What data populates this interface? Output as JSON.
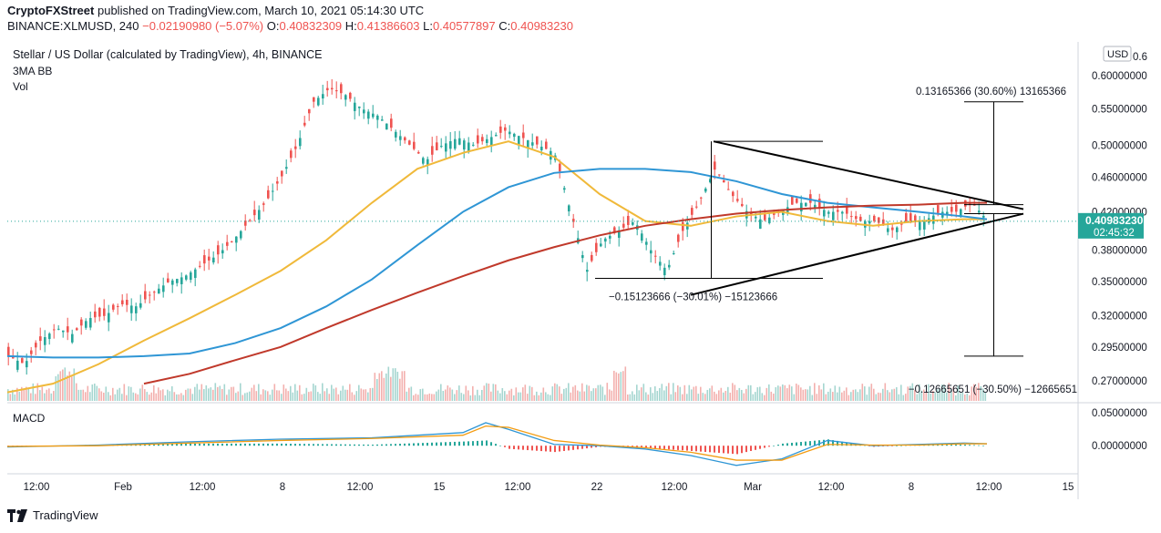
{
  "header": {
    "publisher": "CryptoFXStreet",
    "published_text": "published on TradingView.com, March 10, 2021 05:14:30 UTC",
    "symbol": "BINANCE:XLMUSD, 240",
    "change": "−0.02190980 (−5.07%)",
    "open_label": "O:",
    "open": "0.40832309",
    "high_label": "H:",
    "high": "0.41386603",
    "low_label": "L:",
    "low": "0.40577897",
    "close_label": "C:",
    "close": "0.40983230"
  },
  "legend": {
    "title": "Stellar / US Dollar (calculated by TradingView), 4h, BINANCE",
    "indicator": "3MA BB",
    "volume": "Vol",
    "macd": "MACD"
  },
  "price_axis": {
    "currency": "USD",
    "top_partial": "0.6",
    "last_price": "0.40983230",
    "countdown": "02:45:32",
    "last_price_color": "#26a69a"
  },
  "footer": {
    "brand": "TradingView"
  },
  "chart_data": [
    {
      "type": "line",
      "title": "Stellar / US Dollar (calculated by TradingView), 4h, BINANCE",
      "x_ticks": [
        "12:00",
        "Feb",
        "12:00",
        "8",
        "12:00",
        "15",
        "12:00",
        "22",
        "12:00",
        "Mar",
        "12:00",
        "8",
        "12:00",
        "15"
      ],
      "y_ticks": [
        0.6,
        0.55,
        0.5,
        0.46,
        0.42,
        0.38,
        0.35,
        0.32,
        0.295,
        0.27
      ],
      "y_tick_labels": [
        "0.60000000",
        "0.55000000",
        "0.50000000",
        "0.46000000",
        "0.42000000",
        "0.38000000",
        "0.35000000",
        "0.32000000",
        "0.29500000",
        "0.27000000"
      ],
      "ylim": [
        0.255,
        0.655
      ],
      "scale": "log",
      "last_price": 0.4098323,
      "series": [
        {
          "name": "",
          "color": "#f0b93a",
          "x": [
            0,
            20,
            40,
            60,
            80,
            100,
            120,
            140,
            160,
            180,
            200,
            220,
            240,
            260,
            280,
            300,
            320,
            340,
            360,
            380,
            400,
            420,
            430
          ],
          "values": [
            0.262,
            0.268,
            0.282,
            0.3,
            0.318,
            0.338,
            0.36,
            0.39,
            0.43,
            0.47,
            0.49,
            0.505,
            0.485,
            0.44,
            0.41,
            0.405,
            0.415,
            0.42,
            0.41,
            0.405,
            0.41,
            0.412,
            0.412
          ]
        },
        {
          "name": "",
          "color": "#2f96d5",
          "x": [
            0,
            20,
            40,
            60,
            80,
            100,
            120,
            140,
            160,
            180,
            200,
            220,
            240,
            260,
            280,
            300,
            320,
            340,
            360,
            380,
            400,
            420,
            430
          ],
          "values": [
            0.288,
            0.287,
            0.287,
            0.288,
            0.29,
            0.298,
            0.31,
            0.328,
            0.352,
            0.385,
            0.42,
            0.448,
            0.465,
            0.47,
            0.47,
            0.466,
            0.455,
            0.44,
            0.43,
            0.425,
            0.42,
            0.415,
            0.412
          ]
        },
        {
          "name": "",
          "color": "#c0392b",
          "x": [
            60,
            80,
            100,
            120,
            140,
            160,
            180,
            200,
            220,
            240,
            260,
            280,
            300,
            320,
            340,
            360,
            380,
            400,
            420,
            430
          ],
          "values": [
            0.268,
            0.275,
            0.285,
            0.295,
            0.31,
            0.325,
            0.34,
            0.355,
            0.37,
            0.383,
            0.395,
            0.405,
            0.412,
            0.418,
            0.422,
            0.425,
            0.427,
            0.428,
            0.43,
            0.43
          ]
        }
      ],
      "candles_close": [
        0.288,
        0.282,
        0.3,
        0.31,
        0.305,
        0.318,
        0.32,
        0.33,
        0.328,
        0.34,
        0.35,
        0.355,
        0.365,
        0.375,
        0.39,
        0.41,
        0.43,
        0.46,
        0.5,
        0.56,
        0.58,
        0.57,
        0.55,
        0.54,
        0.52,
        0.5,
        0.48,
        0.5,
        0.51,
        0.5,
        0.51,
        0.52,
        0.51,
        0.5,
        0.49,
        0.42,
        0.36,
        0.39,
        0.4,
        0.41,
        0.38,
        0.36,
        0.4,
        0.43,
        0.47,
        0.44,
        0.42,
        0.41,
        0.42,
        0.43,
        0.43,
        0.42,
        0.42,
        0.41,
        0.41,
        0.4,
        0.41,
        0.41,
        0.42,
        0.42,
        0.43,
        0.41
      ],
      "annotations": {
        "upper_measure": "0.13165366 (30.60%) 13165366",
        "mid_measure": "−0.15123666 (−30.01%) −15123666",
        "lower_measure": "−0.12665651 (−30.50%) −12665651",
        "measure_upper_top": 0.56,
        "measure_upper_bottom": 0.428,
        "measure_lower_bottom": 0.288,
        "mid_measure_top": 0.505,
        "mid_measure_bottom": 0.353,
        "triangle_upper": [
          {
            "x": 310,
            "y": 0.505
          },
          {
            "x": 446,
            "y": 0.423
          }
        ],
        "triangle_lower": [
          {
            "x": 300,
            "y": 0.338
          },
          {
            "x": 446,
            "y": 0.418
          }
        ]
      }
    },
    {
      "type": "bar",
      "title": "MACD",
      "y_ticks": [
        0.05,
        0.0
      ],
      "y_tick_labels": [
        "0.05000000",
        "0.00000000"
      ],
      "ylim": [
        -0.04,
        0.06
      ],
      "series": [
        {
          "name": "",
          "color": "#2f96d5",
          "x": [
            0,
            40,
            80,
            120,
            160,
            200,
            210,
            220,
            240,
            260,
            280,
            300,
            320,
            340,
            360,
            380,
            400,
            420,
            430
          ],
          "values": [
            -0.002,
            0.001,
            0.006,
            0.01,
            0.012,
            0.02,
            0.035,
            0.025,
            0.002,
            0.0,
            -0.005,
            -0.015,
            -0.03,
            -0.02,
            0.008,
            0.0,
            0.002,
            0.004,
            0.003
          ]
        },
        {
          "name": "",
          "color": "#f39c12",
          "x": [
            0,
            40,
            80,
            120,
            160,
            200,
            210,
            220,
            240,
            260,
            280,
            300,
            320,
            340,
            360,
            380,
            400,
            420,
            430
          ],
          "values": [
            -0.001,
            0.0,
            0.004,
            0.008,
            0.011,
            0.016,
            0.03,
            0.028,
            0.008,
            0.001,
            -0.003,
            -0.01,
            -0.022,
            -0.022,
            0.002,
            0.001,
            0.001,
            0.003,
            0.003
          ]
        }
      ]
    }
  ]
}
